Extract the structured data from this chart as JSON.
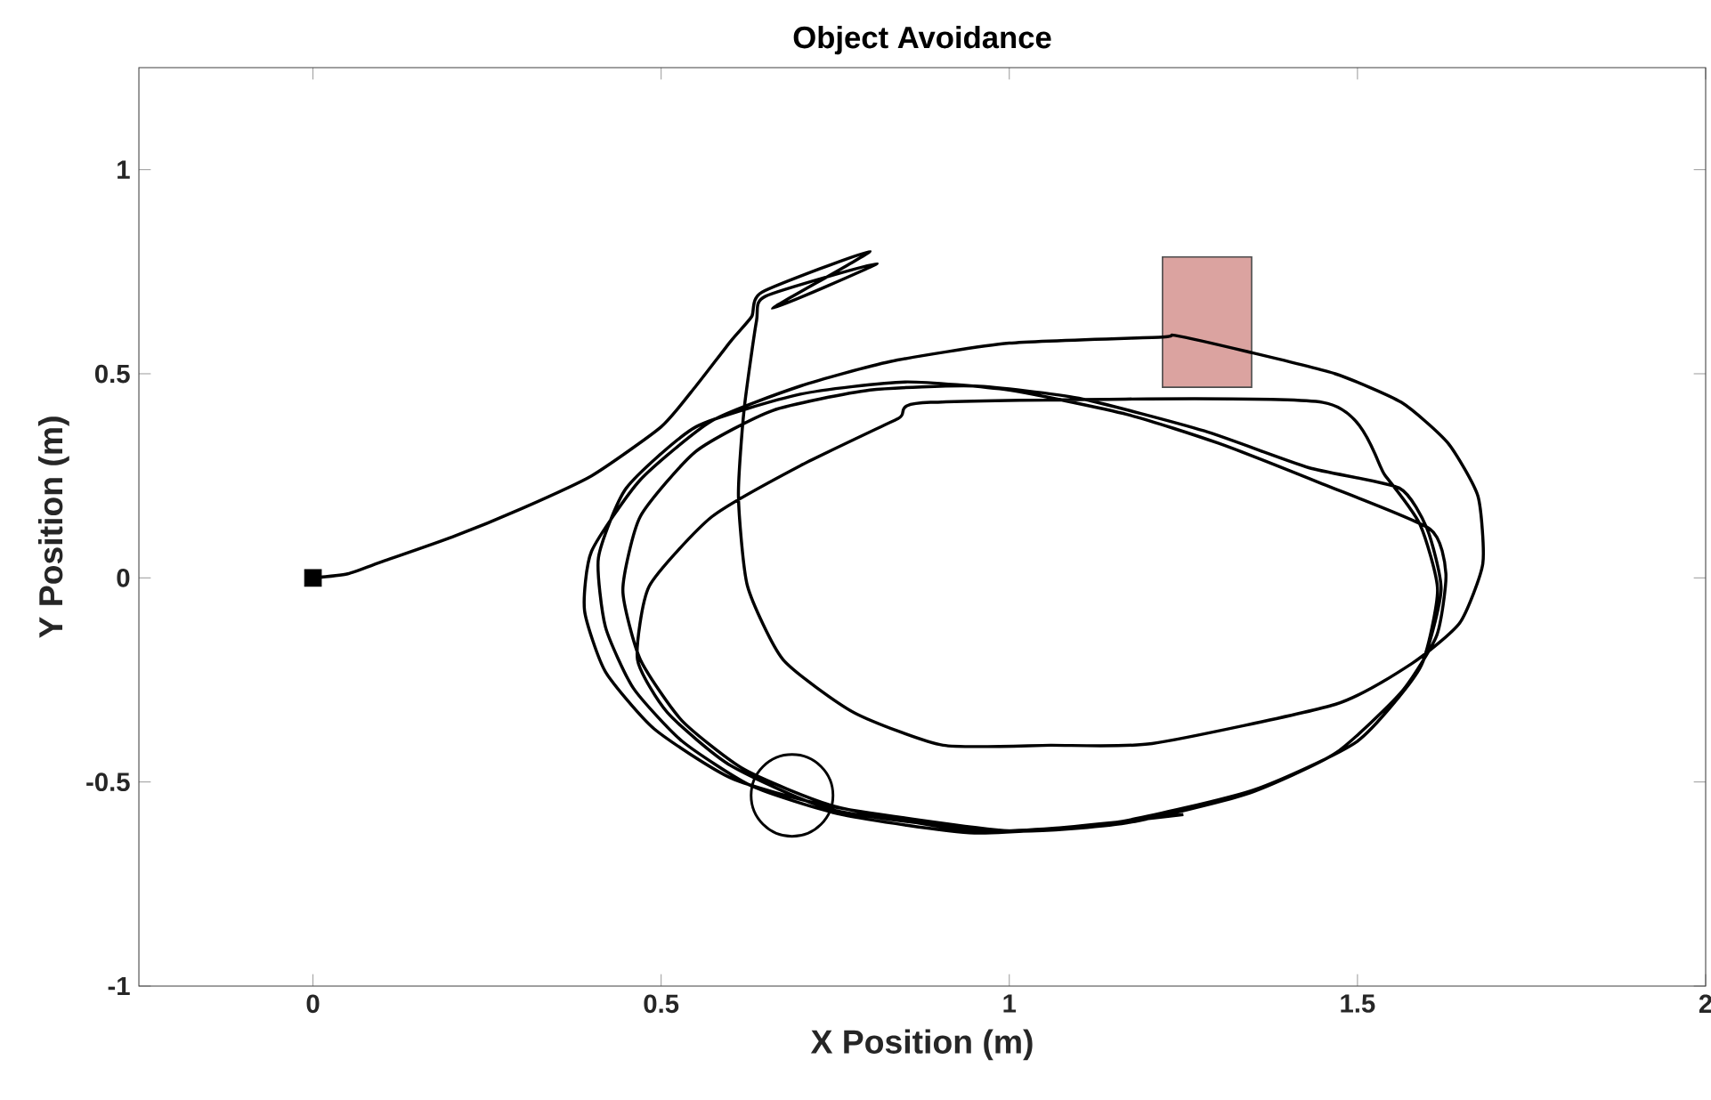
{
  "chart_data": {
    "type": "line",
    "title": "Object Avoidance",
    "xlabel": "X Position (m)",
    "ylabel": "Y Position (m)",
    "xlim": [
      -0.25,
      2
    ],
    "ylim": [
      -1,
      1.25
    ],
    "xticks": [
      0,
      0.5,
      1,
      1.5,
      2
    ],
    "yticks": [
      -1,
      -0.5,
      0,
      0.5,
      1
    ],
    "grid": false,
    "series": [
      {
        "color": "#000000",
        "x": [
          0,
          0.05,
          0.1,
          0.2,
          0.3,
          0.4,
          0.5,
          0.55,
          0.6,
          0.63,
          0.645,
          0.8,
          0.66,
          0.81,
          0.65,
          0.637,
          0.619,
          0.611,
          0.624,
          0.675,
          0.777,
          0.905,
          1.059,
          1.205,
          1.468,
          1.578,
          1.647,
          1.68,
          1.673,
          1.63,
          1.563,
          1.468,
          1.34,
          1.238,
          1.22,
          1.0,
          0.829,
          0.7,
          0.573,
          0.47,
          0.4,
          0.39,
          0.42,
          0.49,
          0.6,
          0.744,
          1.0,
          1.169,
          1.34,
          1.468,
          1.563,
          1.614,
          1.627,
          1.604,
          1.45,
          1.3,
          1.17,
          1.0,
          0.85,
          0.7,
          0.55,
          0.45,
          0.41,
          0.42,
          0.46,
          0.53,
          0.63,
          0.76,
          0.95,
          1.15,
          1.35,
          1.5,
          1.59,
          1.62,
          1.6,
          1.56,
          1.43,
          1.28,
          1.1,
          0.95,
          0.8,
          0.66,
          0.55,
          0.47,
          0.445,
          0.47,
          0.53,
          0.62,
          0.75,
          0.95,
          1.15,
          1.35,
          1.5,
          1.59,
          1.615,
          1.59,
          1.54,
          1.45,
          0.887,
          0.84,
          0.7,
          0.573,
          0.483,
          0.466,
          0.509,
          0.6,
          0.75,
          1.0,
          1.25
        ],
        "values": [
          0,
          0.01,
          0.04,
          0.1,
          0.17,
          0.25,
          0.37,
          0.47,
          0.58,
          0.64,
          0.7,
          0.8,
          0.66,
          0.77,
          0.69,
          0.63,
          0.41,
          0.2,
          -0.02,
          -0.2,
          -0.33,
          -0.41,
          -0.41,
          -0.406,
          -0.31,
          -0.21,
          -0.11,
          0.035,
          0.2,
          0.33,
          0.43,
          0.5,
          0.555,
          0.594,
          0.59,
          0.575,
          0.53,
          0.47,
          0.385,
          0.24,
          0.065,
          -0.08,
          -0.23,
          -0.37,
          -0.49,
          -0.56,
          -0.62,
          -0.6,
          -0.53,
          -0.43,
          -0.28,
          -0.14,
          0.01,
          0.12,
          0.23,
          0.33,
          0.4,
          0.46,
          0.48,
          0.45,
          0.37,
          0.22,
          0.05,
          -0.12,
          -0.27,
          -0.4,
          -0.51,
          -0.58,
          -0.625,
          -0.6,
          -0.52,
          -0.4,
          -0.22,
          -0.03,
          0.12,
          0.22,
          0.27,
          0.36,
          0.44,
          0.47,
          0.46,
          0.41,
          0.31,
          0.15,
          -0.03,
          -0.2,
          -0.35,
          -0.47,
          -0.56,
          -0.62,
          -0.6,
          -0.52,
          -0.4,
          -0.22,
          -0.03,
          0.13,
          0.25,
          0.43,
          0.43,
          0.39,
          0.275,
          0.15,
          -0.02,
          -0.2,
          -0.33,
          -0.46,
          -0.57,
          -0.62,
          -0.58
        ]
      },
      {
        "type": "scatter",
        "color": "#000000",
        "marker": "square",
        "x": [
          0
        ],
        "values": [
          0
        ]
      },
      {
        "type": "bar",
        "color": "#dba3a0",
        "x": [
          1.284
        ],
        "values": [
          0.319
        ],
        "base": [
          0.467
        ]
      }
    ]
  }
}
